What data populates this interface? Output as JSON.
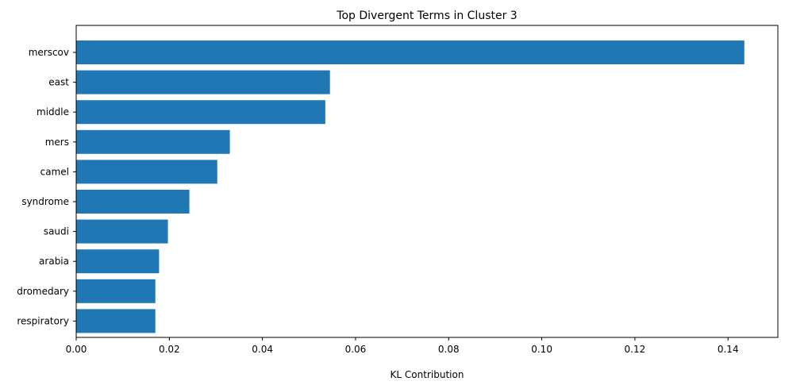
{
  "chart_data": {
    "type": "bar",
    "orientation": "horizontal",
    "title": "Top Divergent Terms in Cluster 3",
    "xlabel": "KL Contribution",
    "ylabel": "",
    "categories": [
      "merscov",
      "east",
      "middle",
      "mers",
      "camel",
      "syndrome",
      "saudi",
      "arabia",
      "dromedary",
      "respiratory"
    ],
    "values": [
      0.1435,
      0.0545,
      0.0535,
      0.033,
      0.0303,
      0.0243,
      0.0197,
      0.0178,
      0.017,
      0.017
    ],
    "xlim": [
      0,
      0.1507
    ],
    "xticks": [
      "0.00",
      "0.02",
      "0.04",
      "0.06",
      "0.08",
      "0.10",
      "0.12",
      "0.14"
    ],
    "xtick_values": [
      0,
      0.02,
      0.04,
      0.06,
      0.08,
      0.1,
      0.12,
      0.14
    ],
    "bar_color": "#1f77b4",
    "grid": false,
    "legend": "none"
  }
}
